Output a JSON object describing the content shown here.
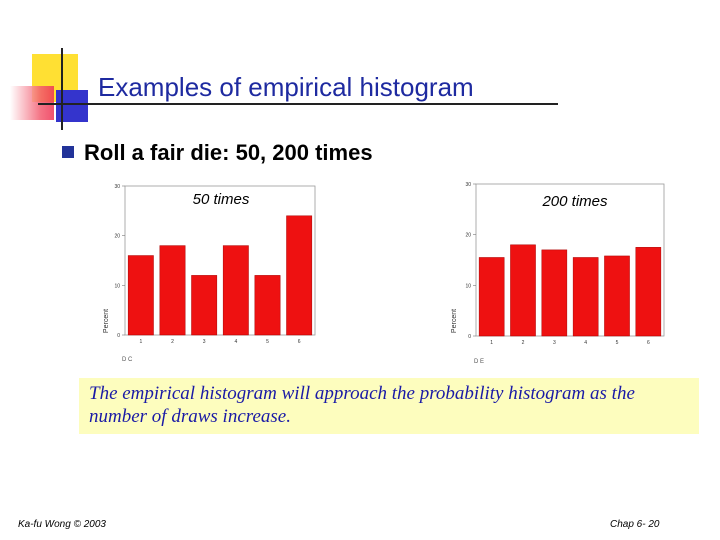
{
  "slide": {
    "title": "Examples of empirical histogram",
    "bullet": "Roll a fair die: 50, 200 times",
    "note": "The empirical histogram will approach the probability histogram as the number of draws increase.",
    "footer_left": "Ka-fu Wong © 2003",
    "footer_right": "Chap 6- 20",
    "accent_color": "#1e2aa0",
    "bar_color": "#ee1111"
  },
  "chart_data": [
    {
      "type": "bar",
      "title": "50 times",
      "categories": [
        "1",
        "2",
        "3",
        "4",
        "5",
        "6"
      ],
      "values": [
        16,
        18,
        12,
        18,
        12,
        24
      ],
      "yticks": [
        "0",
        "10",
        "20",
        "30"
      ],
      "ylabel": "Percent",
      "xlabel": "D C",
      "ylim": [
        0,
        30
      ],
      "grid": false
    },
    {
      "type": "bar",
      "title": "200 times",
      "categories": [
        "1",
        "2",
        "3",
        "4",
        "5",
        "6"
      ],
      "values": [
        15.5,
        18,
        17,
        15.5,
        15.8,
        17.5
      ],
      "yticks": [
        "0",
        "10",
        "20",
        "30"
      ],
      "ylabel": "Percent",
      "xlabel": "D E",
      "ylim": [
        0,
        30
      ],
      "grid": false
    }
  ]
}
